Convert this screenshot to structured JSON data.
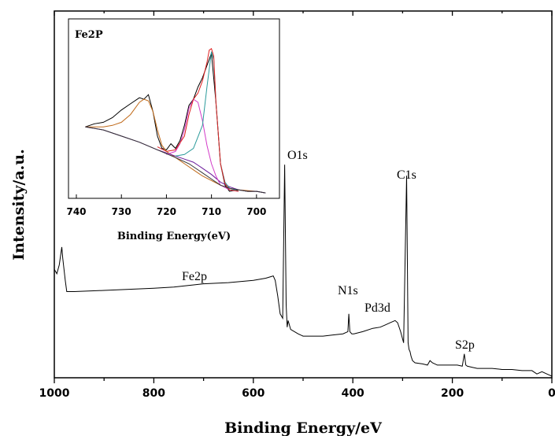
{
  "chart_data": [
    {
      "type": "line",
      "xlabel": "Binding Energy/eV",
      "ylabel": "Intensity/a.u.",
      "xlim": [
        1000,
        0
      ],
      "x_ticks": [
        1000,
        800,
        600,
        400,
        200,
        0
      ],
      "x_tick_labels": [
        "1000",
        "800",
        "600",
        "400",
        "200",
        "0"
      ],
      "ylim": [
        0,
        100
      ],
      "grid": false,
      "series": [
        {
          "color": "#000000",
          "x": [
            1000,
            995,
            990,
            985,
            983,
            978,
            975,
            960,
            900,
            850,
            800,
            760,
            720,
            700,
            650,
            600,
            575,
            560,
            556,
            551,
            546,
            541,
            537,
            534,
            532,
            530,
            525,
            510,
            500,
            480,
            460,
            440,
            420,
            410,
            408,
            406,
            402,
            398,
            380,
            360,
            345,
            335,
            325,
            315,
            310,
            304,
            298,
            292,
            289,
            287,
            285,
            283,
            280,
            275,
            260,
            250,
            245,
            240,
            235,
            230,
            220,
            210,
            200,
            190,
            180,
            176,
            173,
            170,
            160,
            150,
            120,
            100,
            80,
            60,
            40,
            30,
            20,
            10,
            5,
            0
          ],
          "y": [
            48,
            46,
            50,
            58,
            53,
            43,
            38,
            38,
            38.5,
            39,
            39.5,
            40,
            41,
            41.5,
            42,
            43,
            44,
            45,
            43,
            36,
            28,
            26,
            95,
            32,
            22,
            25,
            21,
            19,
            18,
            18,
            18,
            18.5,
            19,
            20,
            28,
            20,
            19,
            19,
            20,
            21.5,
            22,
            23,
            24,
            25,
            24,
            20,
            15,
            90,
            15,
            12,
            11,
            9,
            7,
            6,
            5.5,
            5,
            7,
            6,
            5.5,
            5,
            5,
            5,
            5,
            5,
            4.5,
            10,
            5,
            4.5,
            4,
            3.5,
            3.5,
            3,
            3,
            2.5,
            2.5,
            1,
            2,
            1,
            0.5,
            0
          ]
        }
      ],
      "annotations": [
        "Fe2p",
        "O1s",
        "N1s",
        "Pd3d",
        "C1s",
        "S2p"
      ]
    },
    {
      "type": "line",
      "title": "Fe2P",
      "xlabel": "Binding Energy(eV)",
      "xlim": [
        740,
        697
      ],
      "x_ticks": [
        740,
        730,
        720,
        710,
        700
      ],
      "x_tick_labels": [
        "740",
        "730",
        "720",
        "710",
        "700"
      ],
      "ylim": [
        0,
        100
      ],
      "grid": false,
      "series": [
        {
          "color": "#000000",
          "x": [
            738,
            736,
            734,
            732,
            730,
            728,
            726,
            725,
            724,
            723,
            722,
            721,
            720,
            719,
            718,
            717,
            716,
            715,
            714,
            713,
            712,
            711,
            710,
            709,
            708,
            707,
            706,
            704,
            702,
            700,
            698
          ],
          "y": [
            44,
            46,
            47,
            50,
            55,
            59,
            63,
            62,
            65,
            54,
            38,
            30,
            29,
            33,
            30,
            35,
            45,
            58,
            62,
            70,
            76,
            84,
            92,
            60,
            20,
            6,
            2,
            3,
            2,
            2,
            1
          ]
        },
        {
          "color": "#c06a1a",
          "x": [
            738,
            736,
            734,
            732,
            730,
            728,
            727,
            726,
            725,
            724,
            723,
            722,
            721,
            720,
            719,
            718,
            717,
            716,
            714,
            712,
            710,
            708,
            706,
            704,
            700
          ],
          "y": [
            44,
            44,
            44,
            45,
            47,
            52,
            56,
            60,
            62,
            61,
            54,
            42,
            32,
            28,
            26,
            24,
            22,
            20,
            16,
            12,
            9,
            6,
            4,
            3,
            2
          ]
        },
        {
          "color": "#6a1a9a",
          "x": [
            738,
            734,
            730,
            726,
            722,
            720,
            718,
            716,
            714,
            712,
            710,
            708,
            706,
            704,
            702,
            700,
            698
          ],
          "y": [
            44,
            42,
            38,
            34,
            29,
            27,
            25,
            23,
            21,
            17,
            13,
            8,
            5,
            3,
            2,
            2,
            1
          ]
        },
        {
          "color": "#d33cc8",
          "x": [
            720,
            718,
            717,
            716,
            715,
            714,
            713,
            712,
            711,
            710,
            709,
            708,
            706,
            704
          ],
          "y": [
            26,
            28,
            33,
            42,
            56,
            62,
            60,
            48,
            32,
            20,
            12,
            6,
            3,
            2
          ]
        },
        {
          "color": "#2a9a9a",
          "x": [
            718,
            716,
            714,
            712,
            711,
            710,
            709.5,
            709,
            708,
            707,
            706,
            704
          ],
          "y": [
            25,
            26,
            30,
            45,
            70,
            93,
            88,
            60,
            20,
            8,
            4,
            2
          ]
        },
        {
          "color": "#e02020",
          "x": [
            722,
            720,
            718,
            716,
            715,
            714,
            713,
            712,
            711,
            710.5,
            710,
            709.5,
            709,
            708,
            707,
            706,
            704
          ],
          "y": [
            31,
            28,
            29,
            38,
            52,
            62,
            66,
            74,
            86,
            94,
            95,
            90,
            60,
            20,
            7,
            3,
            2
          ]
        },
        {
          "color": "#333333",
          "x": [
            738,
            734,
            730,
            726,
            722,
            718,
            715,
            712,
            710,
            708,
            706,
            704,
            702,
            700,
            698
          ],
          "y": [
            44,
            42,
            38,
            34,
            29,
            24,
            20,
            14,
            10,
            6,
            4,
            3,
            2,
            2,
            1
          ]
        }
      ]
    }
  ]
}
